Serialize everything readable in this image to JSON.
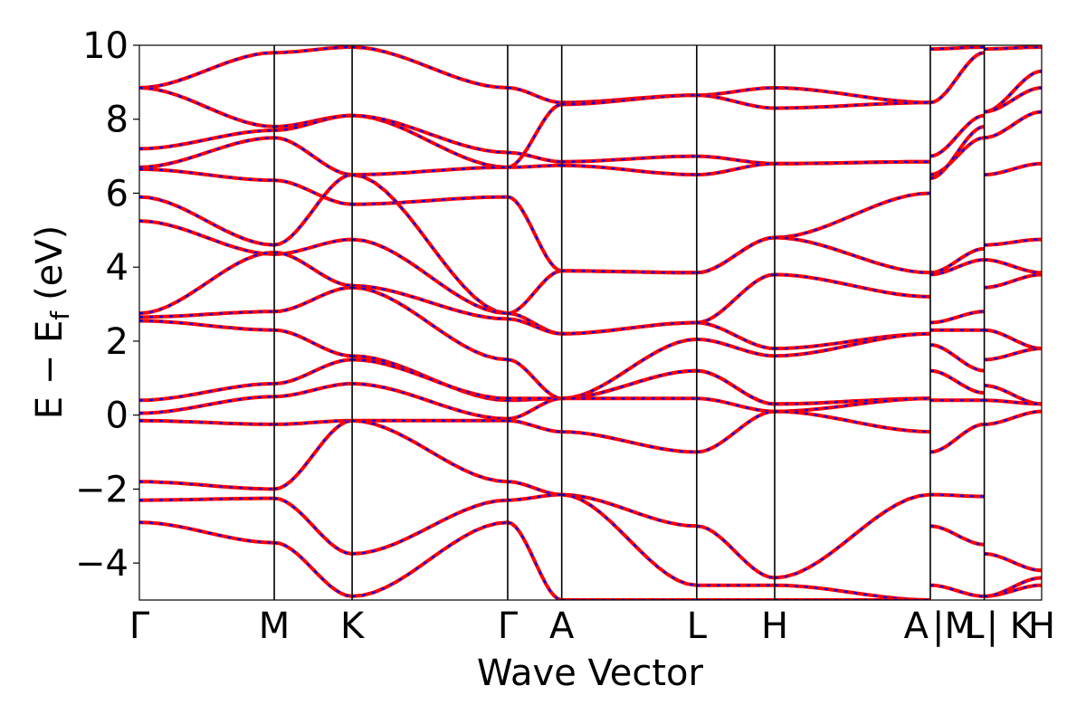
{
  "chart_data": {
    "type": "line",
    "title": "",
    "xlabel": "Wave Vector",
    "ylabel": "E − E",
    "ylabel_sub": "f",
    "ylabel_unit": "(eV)",
    "ylim": [
      -5,
      10
    ],
    "yticks": [
      -4,
      -2,
      0,
      2,
      4,
      6,
      8,
      10
    ],
    "ytick_labels": [
      "−4",
      "−2",
      "0",
      "2",
      "4",
      "6",
      "8",
      "10"
    ],
    "xlim": [
      0,
      1
    ],
    "grid": false,
    "legend": "none",
    "high_symmetry_points": [
      {
        "label": "Γ",
        "x": 0.0
      },
      {
        "label": "M",
        "x": 0.1495
      },
      {
        "label": "K",
        "x": 0.2358
      },
      {
        "label": "Γ",
        "x": 0.4082
      },
      {
        "label": "A",
        "x": 0.4681
      },
      {
        "label": "L",
        "x": 0.6177
      },
      {
        "label": "H",
        "x": 0.7041
      },
      {
        "label": "A",
        "x": 0.8766
      },
      {
        "label": "|M",
        "x": 0.8766
      },
      {
        "label": "L",
        "x": 0.9364
      },
      {
        "label": "| K",
        "x": 0.9364
      },
      {
        "label": "H",
        "x": 1.0
      }
    ],
    "band_style": {
      "primary_color": "#ff0000",
      "overlay_color": "#0000ff",
      "overlay_dash": "dashed"
    },
    "segment_bounds": [
      0.0,
      0.1495,
      0.2358,
      0.4082,
      0.4681,
      0.6177,
      0.7041,
      0.8766,
      0.9364,
      1.0
    ],
    "series": [
      {
        "segment_values": [
          [
            8.85,
            9.8
          ],
          [
            9.8,
            9.95
          ],
          [
            9.95,
            8.85
          ],
          [
            8.85,
            8.45
          ],
          [
            8.45,
            8.65
          ],
          [
            8.65,
            8.85
          ],
          [
            8.85,
            8.45
          ],
          [
            9.9,
            9.95
          ],
          [
            9.9,
            9.95
          ]
        ]
      },
      {
        "segment_values": [
          [
            8.85,
            7.8
          ],
          [
            7.8,
            8.1
          ],
          [
            8.1,
            6.7
          ],
          [
            6.7,
            8.4
          ],
          [
            8.4,
            8.65
          ],
          [
            8.65,
            8.3
          ],
          [
            8.3,
            8.45
          ],
          [
            8.45,
            9.8
          ],
          [
            8.2,
            9.3
          ]
        ]
      },
      {
        "segment_values": [
          [
            7.2,
            7.7
          ],
          [
            7.7,
            8.1
          ],
          [
            8.1,
            7.1
          ],
          [
            7.1,
            6.85
          ],
          [
            6.85,
            7.0
          ],
          [
            7.0,
            6.8
          ],
          [
            6.8,
            6.85
          ],
          [
            7.0,
            8.1
          ],
          [
            8.2,
            8.85
          ]
        ]
      },
      {
        "segment_values": [
          [
            6.7,
            7.5
          ],
          [
            7.5,
            6.5
          ],
          [
            6.5,
            6.7
          ],
          [
            6.7,
            6.75
          ],
          [
            6.75,
            6.5
          ],
          [
            6.5,
            6.8
          ],
          [
            6.8,
            6.85
          ],
          [
            6.5,
            7.5
          ],
          [
            7.5,
            8.2
          ]
        ]
      },
      {
        "segment_values": [
          [
            6.65,
            6.35
          ],
          [
            6.35,
            5.7
          ],
          [
            5.7,
            5.9
          ],
          [
            5.9,
            3.9
          ],
          [
            3.9,
            3.85
          ],
          [
            3.85,
            4.8
          ],
          [
            4.8,
            6.0
          ],
          [
            6.4,
            7.8
          ],
          [
            6.5,
            6.8
          ]
        ]
      },
      {
        "segment_values": [
          [
            5.9,
            4.6
          ],
          [
            4.6,
            6.5
          ],
          [
            6.5,
            2.75
          ],
          [
            2.75,
            3.9
          ],
          [
            3.9,
            3.85
          ],
          [
            3.85,
            4.8
          ],
          [
            4.8,
            3.85
          ],
          [
            3.85,
            4.5
          ],
          [
            4.6,
            4.75
          ]
        ]
      },
      {
        "segment_values": [
          [
            5.25,
            4.35
          ],
          [
            4.35,
            4.75
          ],
          [
            4.75,
            2.75
          ],
          [
            2.75,
            2.2
          ],
          [
            2.2,
            2.5
          ],
          [
            2.5,
            3.8
          ],
          [
            3.8,
            3.2
          ],
          [
            3.8,
            4.2
          ],
          [
            4.2,
            3.85
          ]
        ]
      },
      {
        "segment_values": [
          [
            2.75,
            4.4
          ],
          [
            4.4,
            3.5
          ],
          [
            3.5,
            2.6
          ],
          [
            2.6,
            2.2
          ],
          [
            2.2,
            2.5
          ],
          [
            2.5,
            1.8
          ],
          [
            1.8,
            2.2
          ],
          [
            2.5,
            2.8
          ],
          [
            3.45,
            3.8
          ]
        ]
      },
      {
        "segment_values": [
          [
            2.65,
            2.8
          ],
          [
            2.8,
            3.45
          ],
          [
            3.45,
            1.5
          ],
          [
            1.5,
            0.45
          ],
          [
            0.45,
            2.05
          ],
          [
            2.05,
            1.6
          ],
          [
            1.6,
            2.2
          ],
          [
            2.3,
            2.3
          ],
          [
            2.3,
            1.8
          ]
        ]
      },
      {
        "segment_values": [
          [
            2.55,
            2.3
          ],
          [
            2.3,
            1.6
          ],
          [
            1.6,
            0.4
          ],
          [
            0.4,
            0.45
          ],
          [
            0.45,
            1.2
          ],
          [
            1.2,
            0.3
          ],
          [
            0.3,
            0.45
          ],
          [
            1.9,
            1.2
          ],
          [
            1.5,
            1.8
          ]
        ]
      },
      {
        "segment_values": [
          [
            0.4,
            0.85
          ],
          [
            0.85,
            1.5
          ],
          [
            1.5,
            0.45
          ],
          [
            0.45,
            0.45
          ],
          [
            0.45,
            1.2
          ],
          [
            1.2,
            0.3
          ],
          [
            0.3,
            0.45
          ],
          [
            1.2,
            0.6
          ],
          [
            0.8,
            0.3
          ]
        ]
      },
      {
        "segment_values": [
          [
            0.05,
            0.5
          ],
          [
            0.5,
            0.85
          ],
          [
            0.85,
            -0.1
          ],
          [
            -0.1,
            0.45
          ],
          [
            0.45,
            0.45
          ],
          [
            0.45,
            0.1
          ],
          [
            0.1,
            0.45
          ],
          [
            0.4,
            0.4
          ],
          [
            0.4,
            0.3
          ]
        ]
      },
      {
        "segment_values": [
          [
            -0.15,
            -0.25
          ],
          [
            -0.25,
            -0.15
          ],
          [
            -0.15,
            -0.15
          ],
          [
            -0.15,
            -0.45
          ],
          [
            -0.45,
            -1.0
          ],
          [
            -1.0,
            0.1
          ],
          [
            0.1,
            -0.45
          ],
          [
            -1.0,
            -0.25
          ],
          [
            -0.25,
            0.1
          ]
        ]
      },
      {
        "segment_values": [
          [
            -1.8,
            -2.0
          ],
          [
            -2.0,
            -0.15
          ],
          [
            -0.15,
            -1.8
          ],
          [
            -1.8,
            -2.15
          ],
          [
            -2.15,
            -3.0
          ],
          [
            -3.0,
            -4.4
          ],
          [
            -4.4,
            -2.15
          ],
          [
            -2.15,
            -2.2
          ],
          [
            -3.75,
            -4.2
          ]
        ]
      },
      {
        "segment_values": [
          [
            -2.3,
            -2.25
          ],
          [
            -2.25,
            -3.75
          ],
          [
            -3.75,
            -2.3
          ],
          [
            -2.3,
            -2.15
          ],
          [
            -2.15,
            -4.6
          ],
          [
            -4.6,
            -4.6
          ],
          [
            -4.6,
            -5.0
          ],
          [
            -3.0,
            -3.5
          ],
          [
            -4.9,
            -4.6
          ]
        ]
      },
      {
        "segment_values": [
          [
            -2.9,
            -3.45
          ],
          [
            -3.45,
            -4.9
          ],
          [
            -4.9,
            -2.9
          ],
          [
            -2.9,
            -5.0
          ],
          [
            -5.0,
            -5.0
          ],
          [
            -5.0,
            -5.0
          ],
          [
            -5.0,
            -5.0
          ],
          [
            -4.6,
            -4.9
          ],
          [
            -4.9,
            -4.4
          ]
        ]
      }
    ]
  }
}
